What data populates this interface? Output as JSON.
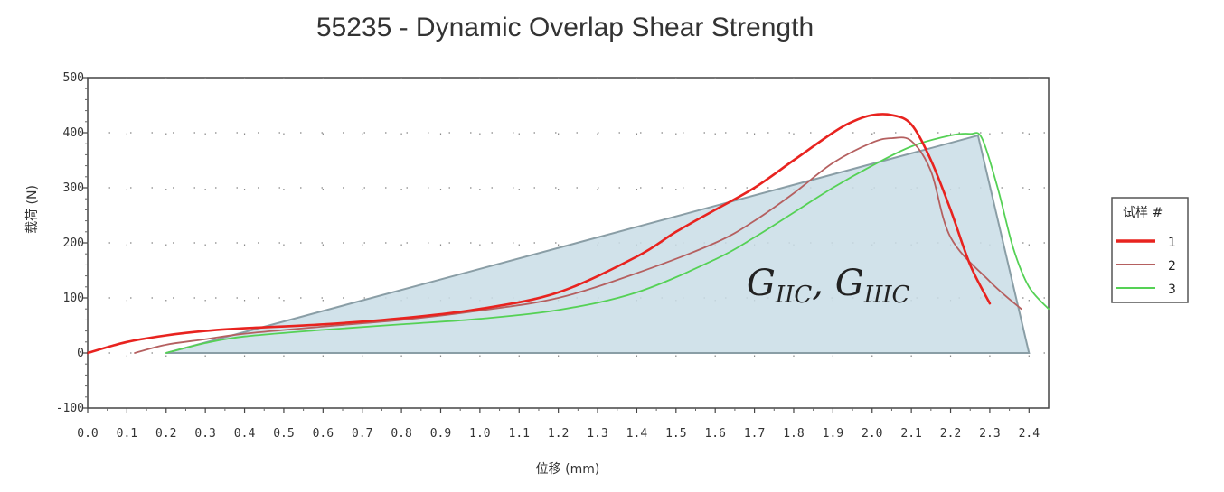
{
  "chart_data": {
    "type": "line",
    "title": "55235 - Dynamic Overlap Shear Strength",
    "xlabel": "位移 (mm)",
    "ylabel": "载荷 (N)",
    "xlim": [
      0.0,
      2.45
    ],
    "ylim": [
      -100,
      500
    ],
    "x_ticks": [
      "0.0",
      "0.1",
      "0.2",
      "0.3",
      "0.4",
      "0.5",
      "0.6",
      "0.7",
      "0.8",
      "0.9",
      "1.0",
      "1.1",
      "1.2",
      "1.3",
      "1.4",
      "1.5",
      "1.6",
      "1.7",
      "1.8",
      "1.9",
      "2.0",
      "2.1",
      "2.2",
      "2.3",
      "2.4"
    ],
    "y_ticks": [
      "500",
      "400",
      "300",
      "200",
      "100",
      "0",
      "-100"
    ],
    "grid": true,
    "legend": {
      "title": "试样 #",
      "placement": "right",
      "entries": [
        "1",
        "2",
        "3"
      ]
    },
    "series": [
      {
        "name": "1",
        "color": "#e8231f",
        "x": [
          0.0,
          0.1,
          0.2,
          0.3,
          0.4,
          0.6,
          0.8,
          1.0,
          1.2,
          1.4,
          1.5,
          1.6,
          1.7,
          1.8,
          1.9,
          1.95,
          2.0,
          2.05,
          2.1,
          2.15,
          2.2,
          2.25,
          2.3
        ],
        "y": [
          0,
          20,
          32,
          40,
          45,
          52,
          63,
          80,
          110,
          175,
          220,
          260,
          300,
          350,
          400,
          420,
          432,
          432,
          415,
          350,
          260,
          160,
          90
        ]
      },
      {
        "name": "2",
        "color": "#b56060",
        "x": [
          0.12,
          0.2,
          0.3,
          0.4,
          0.6,
          0.8,
          1.0,
          1.2,
          1.4,
          1.6,
          1.7,
          1.8,
          1.9,
          2.0,
          2.05,
          2.1,
          2.15,
          2.2,
          2.3,
          2.38
        ],
        "y": [
          0,
          15,
          25,
          35,
          48,
          60,
          77,
          100,
          145,
          200,
          240,
          290,
          345,
          382,
          390,
          385,
          330,
          210,
          130,
          80
        ]
      },
      {
        "name": "3",
        "color": "#55d155",
        "x": [
          0.2,
          0.3,
          0.4,
          0.6,
          0.8,
          1.0,
          1.2,
          1.4,
          1.6,
          1.7,
          1.8,
          1.9,
          2.0,
          2.1,
          2.2,
          2.25,
          2.28,
          2.32,
          2.36,
          2.4,
          2.45
        ],
        "y": [
          0,
          18,
          30,
          42,
          52,
          62,
          78,
          110,
          170,
          210,
          255,
          300,
          340,
          375,
          395,
          398,
          390,
          300,
          190,
          120,
          80
        ]
      }
    ],
    "shaded_region": {
      "color": "#c9dde6",
      "border": "#8a9ea6",
      "points": [
        [
          0.2,
          0
        ],
        [
          2.27,
          395
        ],
        [
          2.4,
          0
        ]
      ]
    },
    "annotation": {
      "base_1": "G",
      "sub_1": "IIC",
      "separator": ", ",
      "base_2": "G",
      "sub_2": "IIIC",
      "x": 1.68,
      "y": 105
    }
  }
}
